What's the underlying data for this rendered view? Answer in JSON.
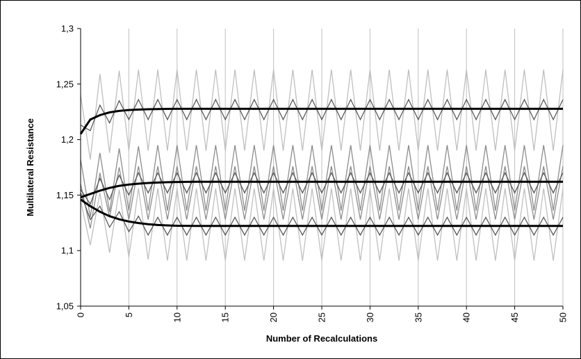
{
  "chart_data": {
    "type": "line",
    "title": "",
    "xlabel": "Number of Recalculations",
    "ylabel": "Multilateral Resistance",
    "xlim": [
      0,
      50
    ],
    "ylim": [
      1.05,
      1.3
    ],
    "x_ticks": [
      0,
      5,
      10,
      15,
      20,
      25,
      30,
      35,
      40,
      45,
      50
    ],
    "x_tick_labels": [
      "0",
      "5",
      "10",
      "15",
      "20",
      "25",
      "30",
      "35",
      "40",
      "45",
      "50"
    ],
    "y_ticks": [
      1.05,
      1.1,
      1.15,
      1.2,
      1.25,
      1.3
    ],
    "y_tick_labels": [
      "1,05",
      "1,1",
      "1,15",
      "1,2",
      "1,25",
      "1,3"
    ],
    "grid": "vertical",
    "legend": "none",
    "colors": {
      "converged": "#000000",
      "dark_gray": "#595959",
      "mid_gray": "#8c8c8c",
      "light_gray": "#bfbfbf",
      "grid": "#bfbfbf"
    },
    "series": [
      {
        "style": "converged",
        "values": [
          1.205,
          1.218,
          1.222,
          1.2245,
          1.2258,
          1.2266,
          1.227,
          1.2273,
          1.2275,
          1.2276,
          1.2277,
          1.2277,
          1.2277,
          1.2277,
          1.2277,
          1.2277,
          1.2277,
          1.2277,
          1.2277,
          1.2277,
          1.2277,
          1.2277,
          1.2277,
          1.2277,
          1.2277,
          1.2277,
          1.2277,
          1.2277,
          1.2277,
          1.2277,
          1.2277,
          1.2277,
          1.2277,
          1.2277,
          1.2277,
          1.2277,
          1.2277,
          1.2277,
          1.2277,
          1.2277,
          1.2277,
          1.2277,
          1.2277,
          1.2277,
          1.2277,
          1.2277,
          1.2277,
          1.2277,
          1.2277,
          1.2277,
          1.2277
        ]
      },
      {
        "style": "converged",
        "values": [
          1.148,
          1.151,
          1.154,
          1.1565,
          1.1583,
          1.1595,
          1.1603,
          1.1609,
          1.1613,
          1.1616,
          1.1618,
          1.1619,
          1.162,
          1.162,
          1.162,
          1.162,
          1.162,
          1.162,
          1.162,
          1.162,
          1.162,
          1.162,
          1.162,
          1.162,
          1.162,
          1.162,
          1.162,
          1.162,
          1.162,
          1.162,
          1.162,
          1.162,
          1.162,
          1.162,
          1.162,
          1.162,
          1.162,
          1.162,
          1.162,
          1.162,
          1.162,
          1.162,
          1.162,
          1.162,
          1.162,
          1.162,
          1.162,
          1.162,
          1.162,
          1.162,
          1.162
        ]
      },
      {
        "style": "converged",
        "values": [
          1.146,
          1.14,
          1.135,
          1.131,
          1.1282,
          1.1262,
          1.1248,
          1.1238,
          1.1231,
          1.1227,
          1.1224,
          1.1223,
          1.1222,
          1.1222,
          1.1222,
          1.1222,
          1.1222,
          1.1222,
          1.1222,
          1.1222,
          1.1222,
          1.1222,
          1.1222,
          1.1222,
          1.1222,
          1.1222,
          1.1222,
          1.1222,
          1.1222,
          1.1222,
          1.1222,
          1.1222,
          1.1222,
          1.1222,
          1.1222,
          1.1222,
          1.1222,
          1.1222,
          1.1222,
          1.1222,
          1.1222,
          1.1222,
          1.1222,
          1.1222,
          1.1222,
          1.1222,
          1.1222,
          1.1222,
          1.1222,
          1.1222,
          1.1222
        ]
      },
      {
        "style": "light_gray",
        "values": [
          1.24,
          1.182,
          1.259,
          1.188,
          1.262,
          1.19,
          1.263,
          1.19,
          1.263,
          1.19,
          1.263,
          1.19,
          1.263,
          1.19,
          1.263,
          1.19,
          1.263,
          1.19,
          1.263,
          1.19,
          1.263,
          1.19,
          1.263,
          1.19,
          1.263,
          1.19,
          1.263,
          1.19,
          1.263,
          1.19,
          1.263,
          1.19,
          1.263,
          1.19,
          1.263,
          1.19,
          1.263,
          1.19,
          1.263,
          1.19,
          1.263,
          1.19,
          1.263,
          1.19,
          1.263,
          1.19,
          1.263,
          1.19,
          1.263,
          1.19,
          1.263
        ]
      },
      {
        "style": "dark_gray",
        "values": [
          1.213,
          1.208,
          1.231,
          1.215,
          1.235,
          1.218,
          1.236,
          1.218,
          1.236,
          1.218,
          1.236,
          1.218,
          1.236,
          1.218,
          1.236,
          1.218,
          1.236,
          1.218,
          1.236,
          1.218,
          1.236,
          1.218,
          1.236,
          1.218,
          1.236,
          1.218,
          1.236,
          1.218,
          1.236,
          1.218,
          1.236,
          1.218,
          1.236,
          1.218,
          1.236,
          1.218,
          1.236,
          1.218,
          1.236,
          1.218,
          1.236,
          1.218,
          1.236,
          1.218,
          1.236,
          1.218,
          1.236,
          1.218,
          1.236,
          1.218,
          1.236
        ]
      },
      {
        "style": "mid_gray",
        "values": [
          1.182,
          1.13,
          1.188,
          1.135,
          1.192,
          1.136,
          1.194,
          1.136,
          1.195,
          1.136,
          1.195,
          1.136,
          1.195,
          1.136,
          1.195,
          1.136,
          1.195,
          1.136,
          1.195,
          1.136,
          1.195,
          1.136,
          1.195,
          1.136,
          1.195,
          1.136,
          1.195,
          1.136,
          1.195,
          1.136,
          1.195,
          1.136,
          1.195,
          1.136,
          1.195,
          1.136,
          1.195,
          1.136,
          1.195,
          1.136,
          1.195,
          1.136,
          1.195,
          1.136,
          1.195,
          1.136,
          1.195,
          1.136,
          1.195,
          1.136,
          1.195
        ]
      },
      {
        "style": "mid_gray",
        "values": [
          1.16,
          1.12,
          1.17,
          1.13,
          1.175,
          1.128,
          1.176,
          1.128,
          1.176,
          1.128,
          1.176,
          1.128,
          1.176,
          1.128,
          1.176,
          1.128,
          1.176,
          1.128,
          1.176,
          1.128,
          1.176,
          1.128,
          1.176,
          1.128,
          1.176,
          1.128,
          1.176,
          1.128,
          1.176,
          1.128,
          1.176,
          1.128,
          1.176,
          1.128,
          1.176,
          1.128,
          1.176,
          1.128,
          1.176,
          1.128,
          1.176,
          1.128,
          1.176,
          1.128,
          1.176,
          1.128,
          1.176,
          1.128,
          1.176,
          1.128,
          1.176
        ]
      },
      {
        "style": "dark_gray",
        "values": [
          1.155,
          1.142,
          1.165,
          1.146,
          1.168,
          1.15,
          1.17,
          1.152,
          1.17,
          1.152,
          1.17,
          1.152,
          1.17,
          1.152,
          1.17,
          1.152,
          1.17,
          1.152,
          1.17,
          1.152,
          1.17,
          1.152,
          1.17,
          1.152,
          1.17,
          1.152,
          1.17,
          1.152,
          1.17,
          1.152,
          1.17,
          1.152,
          1.17,
          1.152,
          1.17,
          1.152,
          1.17,
          1.152,
          1.17,
          1.152,
          1.17,
          1.152,
          1.17,
          1.152,
          1.17,
          1.152,
          1.17,
          1.152,
          1.17,
          1.152,
          1.17
        ]
      },
      {
        "style": "dark_gray",
        "values": [
          1.152,
          1.128,
          1.14,
          1.121,
          1.135,
          1.117,
          1.131,
          1.114,
          1.13,
          1.114,
          1.13,
          1.114,
          1.13,
          1.114,
          1.13,
          1.114,
          1.13,
          1.114,
          1.13,
          1.114,
          1.13,
          1.114,
          1.13,
          1.114,
          1.13,
          1.114,
          1.13,
          1.114,
          1.13,
          1.114,
          1.13,
          1.114,
          1.13,
          1.114,
          1.13,
          1.114,
          1.13,
          1.114,
          1.13,
          1.114,
          1.13,
          1.114,
          1.13,
          1.114,
          1.13,
          1.114,
          1.13,
          1.114,
          1.13,
          1.114,
          1.13
        ]
      },
      {
        "style": "light_gray",
        "values": [
          1.145,
          1.105,
          1.152,
          1.098,
          1.155,
          1.094,
          1.156,
          1.092,
          1.156,
          1.091,
          1.156,
          1.091,
          1.156,
          1.091,
          1.156,
          1.091,
          1.156,
          1.091,
          1.156,
          1.091,
          1.156,
          1.091,
          1.156,
          1.091,
          1.156,
          1.091,
          1.156,
          1.091,
          1.156,
          1.091,
          1.156,
          1.091,
          1.156,
          1.091,
          1.156,
          1.091,
          1.156,
          1.091,
          1.156,
          1.091,
          1.156,
          1.091,
          1.156,
          1.091,
          1.156,
          1.091,
          1.156,
          1.091,
          1.156,
          1.091,
          1.156
        ]
      }
    ]
  }
}
